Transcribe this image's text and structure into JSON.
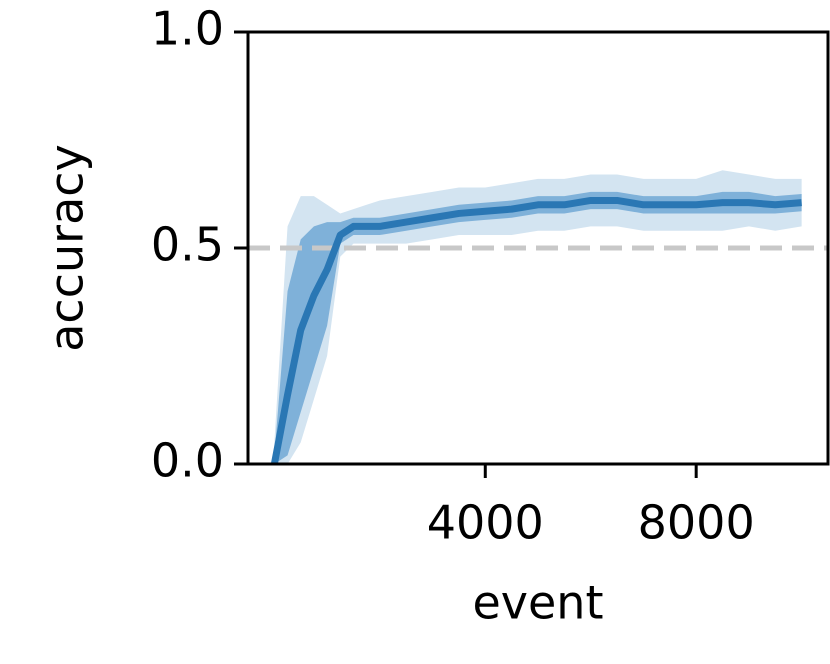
{
  "chart_data": {
    "type": "line",
    "xlabel": "event",
    "ylabel": "accuracy",
    "x": [
      0,
      250,
      500,
      750,
      1000,
      1250,
      1500,
      1750,
      2000,
      2500,
      3000,
      3500,
      4000,
      4500,
      5000,
      5500,
      6000,
      6500,
      7000,
      7500,
      8000,
      8500,
      9000,
      9500,
      10000
    ],
    "line": {
      "color": "#2a77b4",
      "values": [
        0,
        0.16,
        0.31,
        0.39,
        0.45,
        0.53,
        0.55,
        0.55,
        0.55,
        0.56,
        0.57,
        0.58,
        0.585,
        0.59,
        0.6,
        0.6,
        0.61,
        0.61,
        0.6,
        0.6,
        0.6,
        0.605,
        0.605,
        0.6,
        0.605
      ]
    },
    "bands": [
      {
        "color": "#d3e4f1",
        "upper": [
          0.05,
          0.55,
          0.62,
          0.62,
          0.6,
          0.58,
          0.59,
          0.6,
          0.61,
          0.62,
          0.63,
          0.64,
          0.64,
          0.65,
          0.66,
          0.66,
          0.67,
          0.67,
          0.66,
          0.66,
          0.66,
          0.68,
          0.67,
          0.66,
          0.66
        ],
        "lower": [
          0,
          0,
          0.05,
          0.15,
          0.25,
          0.48,
          0.51,
          0.51,
          0.51,
          0.51,
          0.52,
          0.53,
          0.53,
          0.53,
          0.54,
          0.54,
          0.55,
          0.55,
          0.54,
          0.54,
          0.54,
          0.54,
          0.55,
          0.54,
          0.55
        ]
      },
      {
        "color": "#7fb1d9",
        "upper": [
          0.02,
          0.4,
          0.52,
          0.55,
          0.56,
          0.56,
          0.57,
          0.57,
          0.57,
          0.58,
          0.59,
          0.6,
          0.605,
          0.61,
          0.62,
          0.62,
          0.63,
          0.63,
          0.62,
          0.62,
          0.62,
          0.63,
          0.63,
          0.62,
          0.625
        ]
      },
      {
        "color": "#7fb1d9",
        "lower": [
          0,
          0.02,
          0.12,
          0.22,
          0.32,
          0.51,
          0.53,
          0.53,
          0.53,
          0.54,
          0.55,
          0.56,
          0.565,
          0.57,
          0.58,
          0.58,
          0.59,
          0.59,
          0.58,
          0.58,
          0.58,
          0.58,
          0.58,
          0.58,
          0.585
        ]
      }
    ],
    "hline": {
      "value": 0.5,
      "color": "#c8c8c8"
    },
    "xlim": [
      -500,
      10500
    ],
    "ylim": [
      0,
      1
    ],
    "xticks": [
      4000,
      8000
    ],
    "yticks": [
      {
        "value": 0,
        "label": "0.0"
      },
      0.5,
      {
        "value": 1,
        "label": "1.0"
      }
    ]
  }
}
